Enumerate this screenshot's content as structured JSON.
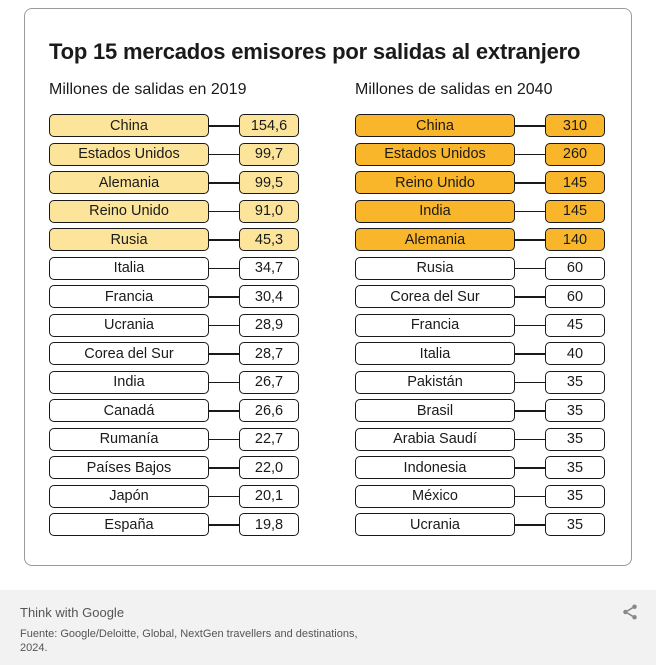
{
  "chart_data": {
    "type": "table",
    "title": "Top 15 mercados emisores por salidas al extranjero",
    "tables": [
      {
        "heading": "Millones de salidas en 2019",
        "rows": [
          {
            "country": "China",
            "value": "154,6"
          },
          {
            "country": "Estados Unidos",
            "value": "99,7"
          },
          {
            "country": "Alemania",
            "value": "99,5"
          },
          {
            "country": "Reino Unido",
            "value": "91,0"
          },
          {
            "country": "Rusia",
            "value": "45,3"
          },
          {
            "country": "Italia",
            "value": "34,7"
          },
          {
            "country": "Francia",
            "value": "30,4"
          },
          {
            "country": "Ucrania",
            "value": "28,9"
          },
          {
            "country": "Corea del Sur",
            "value": "28,7"
          },
          {
            "country": "India",
            "value": "26,7"
          },
          {
            "country": "Canadá",
            "value": "26,6"
          },
          {
            "country": "Rumanía",
            "value": "22,7"
          },
          {
            "country": "Países Bajos",
            "value": "22,0"
          },
          {
            "country": "Japón",
            "value": "20,1"
          },
          {
            "country": "España",
            "value": "19,8"
          }
        ],
        "highlight_count": 5,
        "highlight_color": "#fce59a"
      },
      {
        "heading": "Millones de salidas en 2040",
        "rows": [
          {
            "country": "China",
            "value": "310"
          },
          {
            "country": "Estados Unidos",
            "value": "260"
          },
          {
            "country": "Reino Unido",
            "value": "145"
          },
          {
            "country": "India",
            "value": "145"
          },
          {
            "country": "Alemania",
            "value": "140"
          },
          {
            "country": "Rusia",
            "value": "60"
          },
          {
            "country": "Corea del Sur",
            "value": "60"
          },
          {
            "country": "Francia",
            "value": "45"
          },
          {
            "country": "Italia",
            "value": "40"
          },
          {
            "country": "Pakistán",
            "value": "35"
          },
          {
            "country": "Brasil",
            "value": "35"
          },
          {
            "country": "Arabia Saudí",
            "value": "35"
          },
          {
            "country": "Indonesia",
            "value": "35"
          },
          {
            "country": "México",
            "value": "35"
          },
          {
            "country": "Ucrania",
            "value": "35"
          }
        ],
        "highlight_count": 5,
        "highlight_color": "#f9b62a"
      }
    ]
  },
  "footer": {
    "brand": "Think with Google",
    "source": "Fuente: Google/Deloitte, Global, NextGen travellers and destinations, 2024.",
    "share_icon": "share-icon"
  }
}
